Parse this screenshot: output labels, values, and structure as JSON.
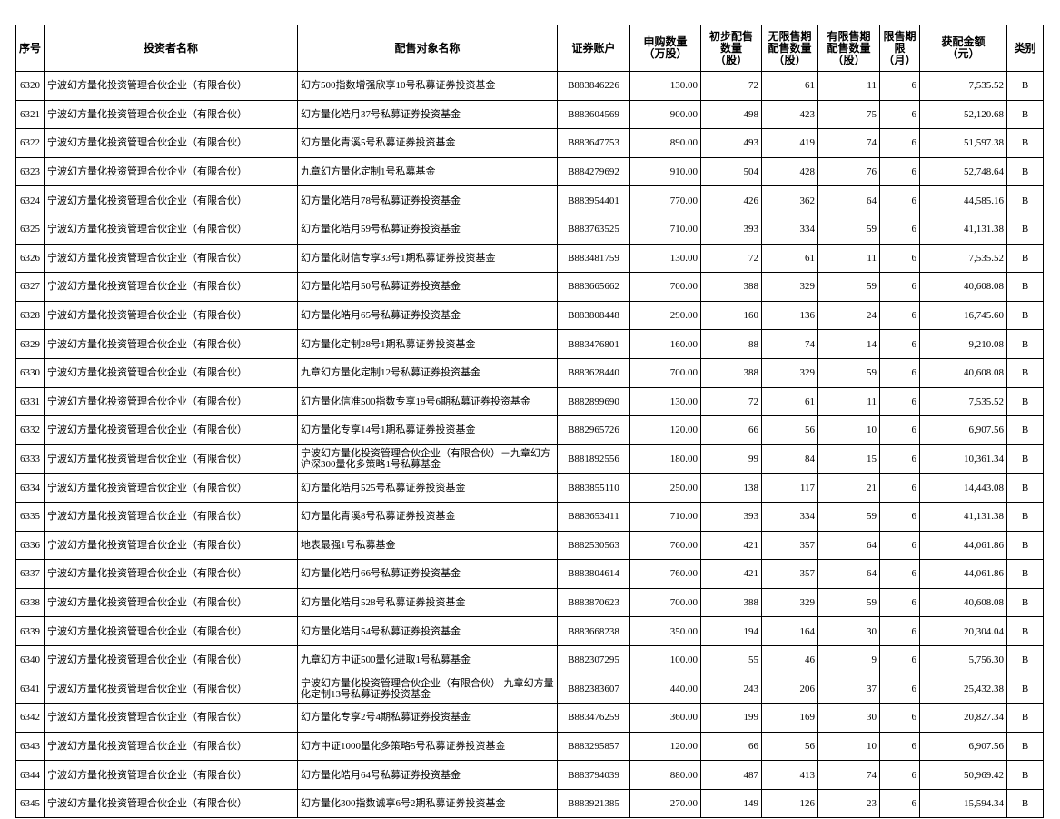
{
  "table": {
    "header": [
      [
        "序号"
      ],
      [
        "投资者名称"
      ],
      [
        "配售对象名称"
      ],
      [
        "证券账户"
      ],
      [
        "申购数量",
        "（万股）"
      ],
      [
        "初步配售",
        "数量",
        "（股）"
      ],
      [
        "无限售期",
        "配售数量",
        "（股）"
      ],
      [
        "有限售期",
        "配售数量",
        "（股）"
      ],
      [
        "限售期",
        "限",
        "（月）"
      ],
      [
        "获配金额",
        "（元）"
      ],
      [
        "类别"
      ]
    ],
    "rows": [
      [
        "6320",
        "宁波幻方量化投资管理合伙企业（有限合伙）",
        "幻方500指数增强欣享10号私募证券投资基金",
        "B883846226",
        "130.00",
        "72",
        "61",
        "11",
        "6",
        "7,535.52",
        "B"
      ],
      [
        "6321",
        "宁波幻方量化投资管理合伙企业（有限合伙）",
        "幻方量化皓月37号私募证券投资基金",
        "B883604569",
        "900.00",
        "498",
        "423",
        "75",
        "6",
        "52,120.68",
        "B"
      ],
      [
        "6322",
        "宁波幻方量化投资管理合伙企业（有限合伙）",
        "幻方量化青溪5号私募证券投资基金",
        "B883647753",
        "890.00",
        "493",
        "419",
        "74",
        "6",
        "51,597.38",
        "B"
      ],
      [
        "6323",
        "宁波幻方量化投资管理合伙企业（有限合伙）",
        "九章幻方量化定制1号私募基金",
        "B884279692",
        "910.00",
        "504",
        "428",
        "76",
        "6",
        "52,748.64",
        "B"
      ],
      [
        "6324",
        "宁波幻方量化投资管理合伙企业（有限合伙）",
        "幻方量化皓月78号私募证券投资基金",
        "B883954401",
        "770.00",
        "426",
        "362",
        "64",
        "6",
        "44,585.16",
        "B"
      ],
      [
        "6325",
        "宁波幻方量化投资管理合伙企业（有限合伙）",
        "幻方量化皓月59号私募证券投资基金",
        "B883763525",
        "710.00",
        "393",
        "334",
        "59",
        "6",
        "41,131.38",
        "B"
      ],
      [
        "6326",
        "宁波幻方量化投资管理合伙企业（有限合伙）",
        "幻方量化财信专享33号1期私募证券投资基金",
        "B883481759",
        "130.00",
        "72",
        "61",
        "11",
        "6",
        "7,535.52",
        "B"
      ],
      [
        "6327",
        "宁波幻方量化投资管理合伙企业（有限合伙）",
        "幻方量化皓月50号私募证券投资基金",
        "B883665662",
        "700.00",
        "388",
        "329",
        "59",
        "6",
        "40,608.08",
        "B"
      ],
      [
        "6328",
        "宁波幻方量化投资管理合伙企业（有限合伙）",
        "幻方量化皓月65号私募证券投资基金",
        "B883808448",
        "290.00",
        "160",
        "136",
        "24",
        "6",
        "16,745.60",
        "B"
      ],
      [
        "6329",
        "宁波幻方量化投资管理合伙企业（有限合伙）",
        "幻方量化定制28号1期私募证券投资基金",
        "B883476801",
        "160.00",
        "88",
        "74",
        "14",
        "6",
        "9,210.08",
        "B"
      ],
      [
        "6330",
        "宁波幻方量化投资管理合伙企业（有限合伙）",
        "九章幻方量化定制12号私募证券投资基金",
        "B883628440",
        "700.00",
        "388",
        "329",
        "59",
        "6",
        "40,608.08",
        "B"
      ],
      [
        "6331",
        "宁波幻方量化投资管理合伙企业（有限合伙）",
        "幻方量化信准500指数专享19号6期私募证券投资基金",
        "B882899690",
        "130.00",
        "72",
        "61",
        "11",
        "6",
        "7,535.52",
        "B"
      ],
      [
        "6332",
        "宁波幻方量化投资管理合伙企业（有限合伙）",
        "幻方量化专享14号1期私募证券投资基金",
        "B882965726",
        "120.00",
        "66",
        "56",
        "10",
        "6",
        "6,907.56",
        "B"
      ],
      [
        "6333",
        "宁波幻方量化投资管理合伙企业（有限合伙）",
        "宁波幻方量化投资管理合伙企业（有限合伙）－九章幻方沪深300量化多策略1号私募基金",
        "B881892556",
        "180.00",
        "99",
        "84",
        "15",
        "6",
        "10,361.34",
        "B"
      ],
      [
        "6334",
        "宁波幻方量化投资管理合伙企业（有限合伙）",
        "幻方量化皓月525号私募证券投资基金",
        "B883855110",
        "250.00",
        "138",
        "117",
        "21",
        "6",
        "14,443.08",
        "B"
      ],
      [
        "6335",
        "宁波幻方量化投资管理合伙企业（有限合伙）",
        "幻方量化青溪8号私募证券投资基金",
        "B883653411",
        "710.00",
        "393",
        "334",
        "59",
        "6",
        "41,131.38",
        "B"
      ],
      [
        "6336",
        "宁波幻方量化投资管理合伙企业（有限合伙）",
        "地表最强1号私募基金",
        "B882530563",
        "760.00",
        "421",
        "357",
        "64",
        "6",
        "44,061.86",
        "B"
      ],
      [
        "6337",
        "宁波幻方量化投资管理合伙企业（有限合伙）",
        "幻方量化皓月66号私募证券投资基金",
        "B883804614",
        "760.00",
        "421",
        "357",
        "64",
        "6",
        "44,061.86",
        "B"
      ],
      [
        "6338",
        "宁波幻方量化投资管理合伙企业（有限合伙）",
        "幻方量化皓月528号私募证券投资基金",
        "B883870623",
        "700.00",
        "388",
        "329",
        "59",
        "6",
        "40,608.08",
        "B"
      ],
      [
        "6339",
        "宁波幻方量化投资管理合伙企业（有限合伙）",
        "幻方量化皓月54号私募证券投资基金",
        "B883668238",
        "350.00",
        "194",
        "164",
        "30",
        "6",
        "20,304.04",
        "B"
      ],
      [
        "6340",
        "宁波幻方量化投资管理合伙企业（有限合伙）",
        "九章幻方中证500量化进取1号私募基金",
        "B882307295",
        "100.00",
        "55",
        "46",
        "9",
        "6",
        "5,756.30",
        "B"
      ],
      [
        "6341",
        "宁波幻方量化投资管理合伙企业（有限合伙）",
        "宁波幻方量化投资管理合伙企业（有限合伙）-九章幻方量化定制13号私募证券投资基金",
        "B882383607",
        "440.00",
        "243",
        "206",
        "37",
        "6",
        "25,432.38",
        "B"
      ],
      [
        "6342",
        "宁波幻方量化投资管理合伙企业（有限合伙）",
        "幻方量化专享2号4期私募证券投资基金",
        "B883476259",
        "360.00",
        "199",
        "169",
        "30",
        "6",
        "20,827.34",
        "B"
      ],
      [
        "6343",
        "宁波幻方量化投资管理合伙企业（有限合伙）",
        "幻方中证1000量化多策略5号私募证券投资基金",
        "B883295857",
        "120.00",
        "66",
        "56",
        "10",
        "6",
        "6,907.56",
        "B"
      ],
      [
        "6344",
        "宁波幻方量化投资管理合伙企业（有限合伙）",
        "幻方量化皓月64号私募证券投资基金",
        "B883794039",
        "880.00",
        "487",
        "413",
        "74",
        "6",
        "50,969.42",
        "B"
      ],
      [
        "6345",
        "宁波幻方量化投资管理合伙企业（有限合伙）",
        "幻方量化300指数诚享6号2期私募证券投资基金",
        "B883921385",
        "270.00",
        "149",
        "126",
        "23",
        "6",
        "15,594.34",
        "B"
      ]
    ]
  }
}
